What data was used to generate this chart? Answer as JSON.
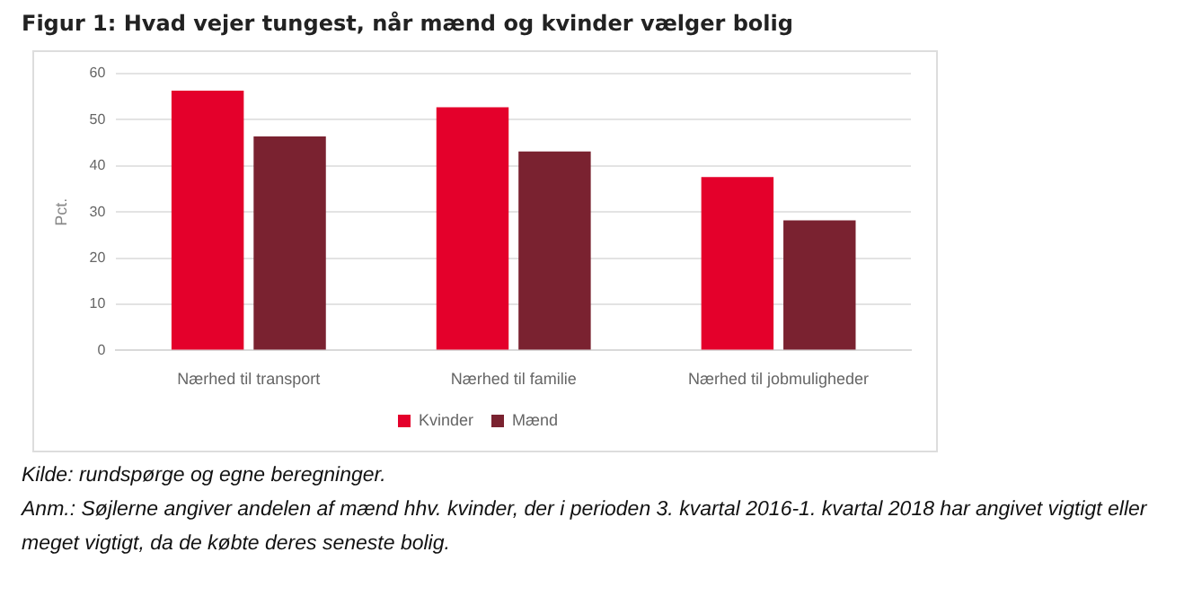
{
  "chart_data": {
    "type": "bar",
    "title": "Figur 1: Hvad vejer tungest, når mænd og kvinder vælger bolig",
    "ylabel": "Pct.",
    "categories": [
      "Nærhed til transport",
      "Nærhed til familie",
      "Nærhed til jobmuligheder"
    ],
    "series": [
      {
        "name": "Kvinder",
        "color": "#e4002b",
        "values": [
          56.3,
          52.7,
          37.6
        ]
      },
      {
        "name": "Mænd",
        "color": "#7a2230",
        "values": [
          46.4,
          43.1,
          28.2
        ]
      }
    ],
    "ylim": [
      0,
      60
    ],
    "yticks": [
      0,
      10,
      20,
      30,
      40,
      50,
      60
    ],
    "grid": "y",
    "legend": "bottom",
    "annotations": [
      "Kilde: rundspørge og egne beregninger.",
      "Anm.: Søjlerne angiver andelen af mænd hhv. kvinder, der i perioden 3. kvartal 2016-1. kvartal 2018 har angivet vigtigt eller meget vigtigt, da de købte deres seneste bolig."
    ]
  }
}
